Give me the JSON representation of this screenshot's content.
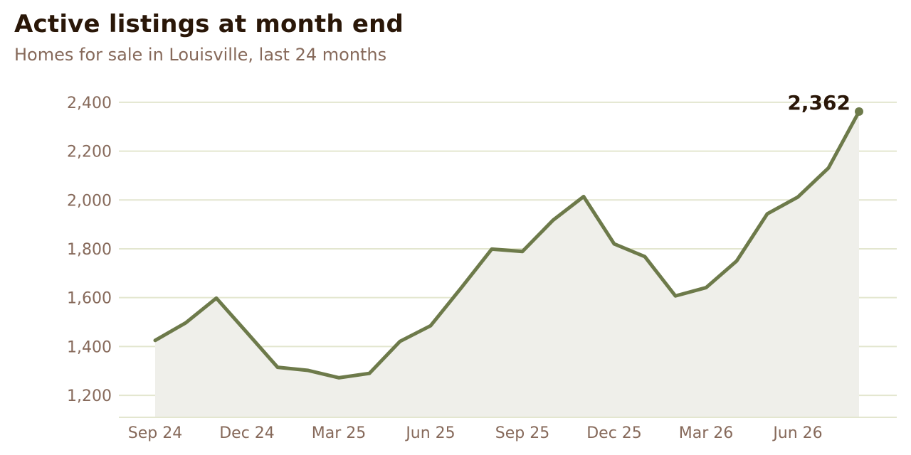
{
  "chart_data": {
    "type": "line",
    "title": "Active listings at month end",
    "subtitle": "Homes for sale in Louisville, last 24 months",
    "x": [
      "Sep 24",
      "Oct 24",
      "Nov 24",
      "Dec 24",
      "Jan 25",
      "Feb 25",
      "Mar 25",
      "Apr 25",
      "May 25",
      "Jun 25",
      "Jul 25",
      "Aug 25",
      "Sep 25",
      "Oct 25",
      "Nov 25",
      "Dec 25",
      "Jan 26",
      "Feb 26",
      "Mar 26",
      "Apr 26",
      "May 26",
      "Jun 26",
      "Jul 26",
      "Aug 26"
    ],
    "x_tick_labels": [
      "Sep 24",
      "Dec 24",
      "Mar 25",
      "Jun 25",
      "Sep 25",
      "Dec 25",
      "Mar 26",
      "Jun 26"
    ],
    "series": [
      {
        "values": [
          1425,
          1497,
          1598,
          1457,
          1315,
          1302,
          1272,
          1290,
          1421,
          1485,
          1640,
          1799,
          1789,
          1917,
          2014,
          1820,
          1768,
          1607,
          1641,
          1750,
          1943,
          2012,
          2131,
          2362
        ]
      }
    ],
    "y_ticks": [
      1200,
      1400,
      1600,
      1800,
      2000,
      2200,
      2400
    ],
    "y_tick_labels": [
      "1,200",
      "1,400",
      "1,600",
      "1,800",
      "2,000",
      "2,200",
      "2,400"
    ],
    "ylim": [
      1110,
      2420
    ],
    "grid": true,
    "end_label": "2,362",
    "colors": {
      "line": "#6d7a4a",
      "area": "#efefea",
      "grid": "#e3e6cf",
      "axis": "#e3e6cf",
      "tick_text": "#86695a",
      "title_text": "#2a1708"
    }
  }
}
